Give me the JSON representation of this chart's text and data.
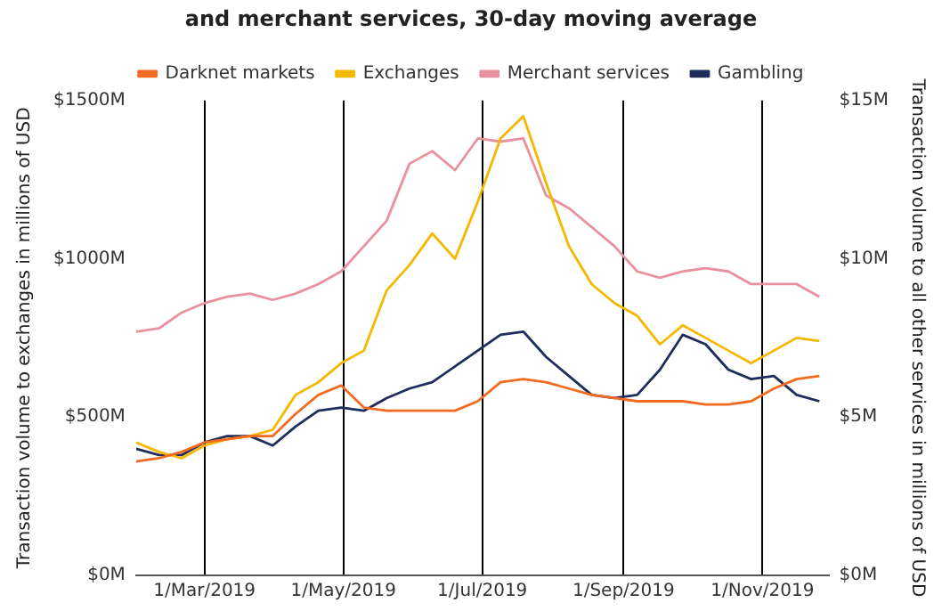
{
  "chart_data": {
    "type": "line",
    "title": "and merchant services, 30-day moving average",
    "ylabel": "Transaction volume to exchanges in millions of USD",
    "y2label": "Transaction volume to all other services in millions of USD",
    "x": [
      "2019-01-30",
      "2019-02-09",
      "2019-02-19",
      "2019-03-01",
      "2019-03-11",
      "2019-03-21",
      "2019-03-31",
      "2019-04-10",
      "2019-04-20",
      "2019-04-30",
      "2019-05-10",
      "2019-05-20",
      "2019-05-30",
      "2019-06-09",
      "2019-06-19",
      "2019-06-29",
      "2019-07-09",
      "2019-07-19",
      "2019-07-29",
      "2019-08-08",
      "2019-08-18",
      "2019-08-28",
      "2019-09-07",
      "2019-09-17",
      "2019-09-27",
      "2019-10-07",
      "2019-10-17",
      "2019-10-27",
      "2019-11-06",
      "2019-11-16",
      "2019-11-26"
    ],
    "series": [
      {
        "name": "Darknet markets",
        "color": "#f26b21",
        "axis": "y2",
        "values": [
          3.6,
          3.7,
          3.9,
          4.2,
          4.3,
          4.4,
          4.4,
          5.1,
          5.7,
          6.0,
          5.3,
          5.2,
          5.2,
          5.2,
          5.2,
          5.5,
          6.1,
          6.2,
          6.1,
          5.9,
          5.7,
          5.6,
          5.5,
          5.5,
          5.5,
          5.4,
          5.4,
          5.5,
          5.9,
          6.2,
          6.3
        ]
      },
      {
        "name": "Exchanges",
        "color": "#f5b800",
        "axis": "y",
        "values": [
          420,
          390,
          370,
          410,
          430,
          440,
          460,
          570,
          610,
          670,
          710,
          900,
          980,
          1080,
          1000,
          1180,
          1380,
          1450,
          1240,
          1040,
          920,
          860,
          820,
          730,
          790,
          750,
          710,
          670,
          710,
          750,
          740
        ]
      },
      {
        "name": "Merchant services",
        "color": "#e8919f",
        "axis": "y2",
        "values": [
          7.7,
          7.8,
          8.3,
          8.6,
          8.8,
          8.9,
          8.7,
          8.9,
          9.2,
          9.6,
          10.4,
          11.2,
          13.0,
          13.4,
          12.8,
          13.8,
          13.7,
          13.8,
          12.0,
          11.6,
          11.0,
          10.4,
          9.6,
          9.4,
          9.6,
          9.7,
          9.6,
          9.2,
          9.2,
          9.2,
          8.8
        ]
      },
      {
        "name": "Gambling",
        "color": "#1f2d5c",
        "axis": "y2",
        "values": [
          4.0,
          3.8,
          3.8,
          4.2,
          4.4,
          4.4,
          4.1,
          4.7,
          5.2,
          5.3,
          5.2,
          5.6,
          5.9,
          6.1,
          6.6,
          7.1,
          7.6,
          7.7,
          6.9,
          6.3,
          5.7,
          5.6,
          5.7,
          6.5,
          7.6,
          7.3,
          6.5,
          6.2,
          6.3,
          5.7,
          5.5
        ]
      }
    ],
    "xlim": [
      "2019-01-30",
      "2019-11-30"
    ],
    "xticks": [
      {
        "value": "2019-03-01",
        "label": "1/Mar/2019"
      },
      {
        "value": "2019-05-01",
        "label": "1/May/2019"
      },
      {
        "value": "2019-07-01",
        "label": "1/Jul/2019"
      },
      {
        "value": "2019-09-01",
        "label": "1/Sep/2019"
      },
      {
        "value": "2019-11-01",
        "label": "1/Nov/2019"
      }
    ],
    "ylim": [
      0,
      1500
    ],
    "yticks": [
      {
        "value": 0,
        "label": "$0M"
      },
      {
        "value": 500,
        "label": "$500M"
      },
      {
        "value": 1000,
        "label": "$1000M"
      },
      {
        "value": 1500,
        "label": "$1500M"
      }
    ],
    "y2lim": [
      0,
      15
    ],
    "y2ticks": [
      {
        "value": 0,
        "label": "$0M"
      },
      {
        "value": 5,
        "label": "$5M"
      },
      {
        "value": 10,
        "label": "$10M"
      },
      {
        "value": 15,
        "label": "$15M"
      }
    ],
    "grid": "x",
    "legend": "top",
    "marker": "none",
    "line_style": "solid"
  }
}
